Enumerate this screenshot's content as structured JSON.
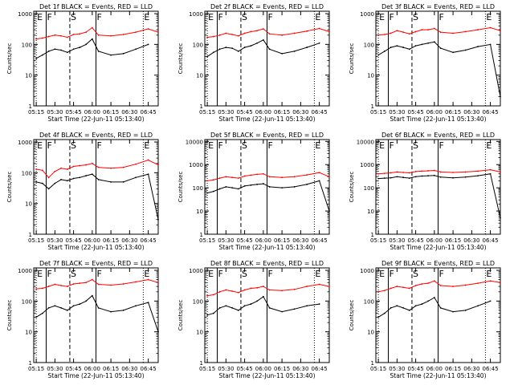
{
  "chart_data": [
    {
      "type": "line",
      "title": "Det 1f BLACK = Events, RED = LLD",
      "xlabel": "Start Time (22-Jun-11 05:13:40)",
      "ylabel": "Counts/sec",
      "xticks": [
        "05:15",
        "05:30",
        "05:45",
        "06:00",
        "06:15",
        "06:30",
        "06:45"
      ],
      "yticks": [
        "1",
        "10",
        "100",
        "1000"
      ],
      "ylim": [
        1,
        1200
      ],
      "x": [
        "05:15",
        "05:20",
        "05:25",
        "05:30",
        "05:35",
        "05:40",
        "05:45",
        "05:50",
        "05:55",
        "06:00",
        "06:05",
        "06:15",
        "06:25",
        "06:35",
        "06:45",
        "06:53"
      ],
      "series": [
        {
          "name": "Events",
          "color": "#000000",
          "values": [
            35,
            45,
            60,
            70,
            65,
            55,
            70,
            80,
            100,
            150,
            60,
            45,
            50,
            70,
            100,
            null
          ]
        },
        {
          "name": "LLD",
          "color": "#ff0000",
          "values": [
            150,
            160,
            180,
            200,
            190,
            170,
            210,
            220,
            250,
            350,
            200,
            190,
            210,
            250,
            320,
            250
          ]
        }
      ],
      "markers": [
        {
          "label": "E",
          "time": "05:15",
          "style": "dotted"
        },
        {
          "label": "F",
          "time": "05:23",
          "style": "solid"
        },
        {
          "label": "S",
          "time": "05:42",
          "style": "dashed"
        },
        {
          "label": "F",
          "time": "06:03",
          "style": "solid"
        },
        {
          "label": "E",
          "time": "06:41",
          "style": "dotted"
        }
      ]
    },
    {
      "type": "line",
      "title": "Det 2f BLACK = Events, RED = LLD",
      "xlabel": "Start Time (22-Jun-11 05:13:40)",
      "ylabel": "Counts/sec",
      "xticks": [
        "05:15",
        "05:30",
        "05:45",
        "06:00",
        "06:15",
        "06:30",
        "06:45"
      ],
      "yticks": [
        "1",
        "10",
        "100",
        "1000"
      ],
      "ylim": [
        1,
        1200
      ],
      "x": [
        "05:15",
        "05:20",
        "05:25",
        "05:30",
        "05:35",
        "05:40",
        "05:45",
        "05:50",
        "05:55",
        "06:00",
        "06:05",
        "06:15",
        "06:25",
        "06:35",
        "06:45",
        "06:53"
      ],
      "series": [
        {
          "name": "Events",
          "color": "#000000",
          "values": [
            40,
            55,
            70,
            80,
            75,
            60,
            80,
            90,
            110,
            140,
            70,
            50,
            60,
            80,
            110,
            null
          ]
        },
        {
          "name": "LLD",
          "color": "#ff0000",
          "values": [
            170,
            180,
            200,
            230,
            210,
            190,
            230,
            260,
            280,
            320,
            220,
            200,
            230,
            270,
            330,
            260
          ]
        }
      ],
      "markers": [
        {
          "label": "E",
          "time": "05:15",
          "style": "dotted"
        },
        {
          "label": "F",
          "time": "05:23",
          "style": "solid"
        },
        {
          "label": "S",
          "time": "05:42",
          "style": "dashed"
        },
        {
          "label": "F",
          "time": "06:03",
          "style": "solid"
        },
        {
          "label": "E",
          "time": "06:41",
          "style": "dotted"
        }
      ]
    },
    {
      "type": "line",
      "title": "Det 3f BLACK = Events, RED = LLD",
      "xlabel": "Start Time (22-Jun-11 05:13:40)",
      "ylabel": "Counts/sec",
      "xticks": [
        "05:15",
        "05:30",
        "05:45",
        "06:00",
        "06:15",
        "06:30",
        "06:45"
      ],
      "yticks": [
        "1",
        "10",
        "100",
        "1000"
      ],
      "ylim": [
        1,
        1200
      ],
      "x": [
        "05:15",
        "05:20",
        "05:25",
        "05:30",
        "05:35",
        "05:40",
        "05:45",
        "05:50",
        "05:55",
        "06:00",
        "06:05",
        "06:15",
        "06:25",
        "06:35",
        "06:45",
        "06:53"
      ],
      "series": [
        {
          "name": "Events",
          "color": "#000000",
          "values": [
            45,
            60,
            80,
            90,
            80,
            70,
            90,
            100,
            110,
            120,
            75,
            55,
            65,
            85,
            100,
            2
          ]
        },
        {
          "name": "LLD",
          "color": "#ff0000",
          "values": [
            200,
            210,
            230,
            280,
            250,
            220,
            260,
            300,
            300,
            330,
            250,
            230,
            260,
            300,
            350,
            280
          ]
        }
      ],
      "markers": [
        {
          "label": "E",
          "time": "05:15",
          "style": "dotted"
        },
        {
          "label": "F",
          "time": "05:23",
          "style": "solid"
        },
        {
          "label": "S",
          "time": "05:42",
          "style": "dashed"
        },
        {
          "label": "F",
          "time": "06:03",
          "style": "solid"
        },
        {
          "label": "E",
          "time": "06:41",
          "style": "dotted"
        }
      ]
    },
    {
      "type": "line",
      "title": "Det 4f BLACK = Events, RED = LLD",
      "xlabel": "Start Time (22-Jun-11 05:13:40)",
      "ylabel": "Counts/sec",
      "xticks": [
        "05:15",
        "05:30",
        "05:45",
        "06:00",
        "06:15",
        "06:30",
        "06:45"
      ],
      "yticks": [
        "1",
        "10",
        "100",
        "1000"
      ],
      "ylim": [
        1,
        1200
      ],
      "x": [
        "05:15",
        "05:20",
        "05:25",
        "05:30",
        "05:35",
        "05:40",
        "05:45",
        "05:50",
        "05:55",
        "06:00",
        "06:05",
        "06:15",
        "06:25",
        "06:35",
        "06:45",
        "06:53"
      ],
      "series": [
        {
          "name": "Events",
          "color": "#000000",
          "values": [
            50,
            45,
            30,
            45,
            60,
            55,
            65,
            70,
            80,
            90,
            60,
            50,
            50,
            70,
            90,
            3
          ]
        },
        {
          "name": "LLD",
          "color": "#ff0000",
          "values": [
            130,
            120,
            70,
            110,
            140,
            130,
            160,
            170,
            180,
            200,
            150,
            140,
            150,
            190,
            260,
            180
          ]
        }
      ],
      "markers": [
        {
          "label": "E",
          "time": "05:15",
          "style": "dotted"
        },
        {
          "label": "F",
          "time": "05:23",
          "style": "solid"
        },
        {
          "label": "S",
          "time": "05:42",
          "style": "dashed"
        },
        {
          "label": "F",
          "time": "06:03",
          "style": "solid"
        },
        {
          "label": "E",
          "time": "06:41",
          "style": "dotted"
        }
      ]
    },
    {
      "type": "line",
      "title": "Det 5f BLACK = Events, RED = LLD",
      "xlabel": "Start Time (22-Jun-11 05:13:40)",
      "ylabel": "Counts/sec",
      "xticks": [
        "05:15",
        "05:30",
        "05:45",
        "06:00",
        "06:15",
        "06:30",
        "06:45"
      ],
      "yticks": [
        "1",
        "10",
        "100",
        "1000",
        "10000"
      ],
      "ylim": [
        1,
        12000
      ],
      "x": [
        "05:15",
        "05:20",
        "05:25",
        "05:30",
        "05:35",
        "05:40",
        "05:45",
        "05:50",
        "05:55",
        "06:00",
        "06:05",
        "06:15",
        "06:25",
        "06:35",
        "06:45",
        "06:53"
      ],
      "series": [
        {
          "name": "Events",
          "color": "#000000",
          "values": [
            60,
            70,
            90,
            110,
            100,
            90,
            120,
            130,
            140,
            150,
            110,
            100,
            110,
            140,
            200,
            10
          ]
        },
        {
          "name": "LLD",
          "color": "#ff0000",
          "values": [
            200,
            220,
            260,
            300,
            280,
            260,
            320,
            350,
            380,
            400,
            300,
            280,
            300,
            360,
            450,
            300
          ]
        }
      ],
      "markers": [
        {
          "label": "E",
          "time": "05:15",
          "style": "dotted"
        },
        {
          "label": "F",
          "time": "05:23",
          "style": "solid"
        },
        {
          "label": "S",
          "time": "05:42",
          "style": "dashed"
        },
        {
          "label": "F",
          "time": "06:03",
          "style": "solid"
        },
        {
          "label": "E",
          "time": "06:41",
          "style": "dotted"
        }
      ]
    },
    {
      "type": "line",
      "title": "Det 6f BLACK = Events, RED = LLD",
      "xlabel": "Start Time (22-Jun-11 05:13:40)",
      "ylabel": "Counts/sec",
      "xticks": [
        "05:15",
        "05:30",
        "05:45",
        "06:00",
        "06:15",
        "06:30",
        "06:45"
      ],
      "yticks": [
        "1",
        "10",
        "100",
        "1000",
        "10000"
      ],
      "ylim": [
        1,
        12000
      ],
      "x": [
        "05:15",
        "05:20",
        "05:25",
        "05:30",
        "05:35",
        "05:40",
        "05:45",
        "05:50",
        "05:55",
        "06:00",
        "06:05",
        "06:15",
        "06:25",
        "06:35",
        "06:45",
        "06:53"
      ],
      "series": [
        {
          "name": "Events",
          "color": "#000000",
          "values": [
            250,
            260,
            270,
            300,
            280,
            260,
            300,
            320,
            330,
            340,
            290,
            270,
            290,
            330,
            400,
            5
          ]
        },
        {
          "name": "LLD",
          "color": "#ff0000",
          "values": [
            400,
            420,
            440,
            480,
            460,
            440,
            500,
            520,
            540,
            560,
            480,
            460,
            480,
            520,
            600,
            480
          ]
        }
      ],
      "markers": [
        {
          "label": "E",
          "time": "05:15",
          "style": "dotted"
        },
        {
          "label": "F",
          "time": "05:23",
          "style": "solid"
        },
        {
          "label": "S",
          "time": "05:42",
          "style": "dashed"
        },
        {
          "label": "F",
          "time": "06:03",
          "style": "solid"
        },
        {
          "label": "E",
          "time": "06:41",
          "style": "dotted"
        }
      ]
    },
    {
      "type": "line",
      "title": "Det 7f BLACK = Events, RED = LLD",
      "xlabel": "Start Time (22-Jun-11 05:13:40)",
      "ylabel": "Counts/sec",
      "xticks": [
        "05:15",
        "05:30",
        "05:45",
        "06:00",
        "06:15",
        "06:30",
        "06:45"
      ],
      "yticks": [
        "1",
        "10",
        "100",
        "1000"
      ],
      "ylim": [
        1,
        1200
      ],
      "x": [
        "05:15",
        "05:20",
        "05:25",
        "05:30",
        "05:35",
        "05:40",
        "05:45",
        "05:50",
        "05:55",
        "06:00",
        "06:05",
        "06:15",
        "06:25",
        "06:35",
        "06:45",
        "06:53"
      ],
      "series": [
        {
          "name": "Events",
          "color": "#000000",
          "values": [
            30,
            40,
            60,
            70,
            60,
            50,
            70,
            80,
            100,
            150,
            60,
            45,
            50,
            70,
            90,
            10
          ]
        },
        {
          "name": "LLD",
          "color": "#ff0000",
          "values": [
            250,
            260,
            300,
            350,
            320,
            300,
            360,
            380,
            400,
            500,
            350,
            330,
            360,
            420,
            500,
            400
          ]
        }
      ],
      "markers": [
        {
          "label": "E",
          "time": "05:15",
          "style": "dotted"
        },
        {
          "label": "F",
          "time": "05:23",
          "style": "solid"
        },
        {
          "label": "S",
          "time": "05:42",
          "style": "dashed"
        },
        {
          "label": "F",
          "time": "06:03",
          "style": "solid"
        },
        {
          "label": "E",
          "time": "06:41",
          "style": "dotted"
        }
      ]
    },
    {
      "type": "line",
      "title": "Det 8f BLACK = Events, RED = LLD",
      "xlabel": "Start Time (22-Jun-11 05:13:40)",
      "ylabel": "Counts/sec",
      "xticks": [
        "05:15",
        "05:30",
        "05:45",
        "06:00",
        "06:15",
        "06:30",
        "06:45"
      ],
      "yticks": [
        "1",
        "10",
        "100",
        "1000"
      ],
      "ylim": [
        1,
        1200
      ],
      "x": [
        "05:15",
        "05:20",
        "05:25",
        "05:30",
        "05:35",
        "05:40",
        "05:45",
        "05:50",
        "05:55",
        "06:00",
        "06:05",
        "06:15",
        "06:25",
        "06:35",
        "06:45",
        "06:53"
      ],
      "series": [
        {
          "name": "Events",
          "color": "#000000",
          "values": [
            35,
            40,
            60,
            70,
            60,
            50,
            70,
            80,
            100,
            140,
            60,
            45,
            55,
            70,
            80,
            null
          ]
        },
        {
          "name": "LLD",
          "color": "#ff0000",
          "values": [
            150,
            160,
            200,
            230,
            210,
            190,
            230,
            260,
            270,
            300,
            230,
            220,
            240,
            300,
            350,
            300
          ]
        }
      ],
      "markers": [
        {
          "label": "E",
          "time": "05:15",
          "style": "dotted"
        },
        {
          "label": "F",
          "time": "05:23",
          "style": "solid"
        },
        {
          "label": "S",
          "time": "05:42",
          "style": "dashed"
        },
        {
          "label": "F",
          "time": "06:03",
          "style": "solid"
        },
        {
          "label": "E",
          "time": "06:41",
          "style": "dotted"
        }
      ]
    },
    {
      "type": "line",
      "title": "Det 9f BLACK = Events, RED = LLD",
      "xlabel": "Start Time (22-Jun-11 05:13:40)",
      "ylabel": "Counts/sec",
      "xticks": [
        "05:15",
        "05:30",
        "05:45",
        "06:00",
        "06:15",
        "06:30",
        "06:45"
      ],
      "yticks": [
        "1",
        "10",
        "100",
        "1000"
      ],
      "ylim": [
        1,
        1200
      ],
      "x": [
        "05:15",
        "05:20",
        "05:25",
        "05:30",
        "05:35",
        "05:40",
        "05:45",
        "05:50",
        "05:55",
        "06:00",
        "06:05",
        "06:15",
        "06:25",
        "06:35",
        "06:45",
        "06:53"
      ],
      "series": [
        {
          "name": "Events",
          "color": "#000000",
          "values": [
            30,
            40,
            60,
            70,
            60,
            50,
            70,
            80,
            100,
            130,
            60,
            45,
            50,
            70,
            100,
            null
          ]
        },
        {
          "name": "LLD",
          "color": "#ff0000",
          "values": [
            200,
            220,
            260,
            300,
            280,
            260,
            320,
            360,
            380,
            450,
            320,
            300,
            330,
            380,
            450,
            400
          ]
        }
      ],
      "markers": [
        {
          "label": "E",
          "time": "05:15",
          "style": "dotted"
        },
        {
          "label": "F",
          "time": "05:23",
          "style": "solid"
        },
        {
          "label": "S",
          "time": "05:42",
          "style": "dashed"
        },
        {
          "label": "F",
          "time": "06:03",
          "style": "solid"
        },
        {
          "label": "E",
          "time": "06:41",
          "style": "dotted"
        }
      ]
    }
  ]
}
